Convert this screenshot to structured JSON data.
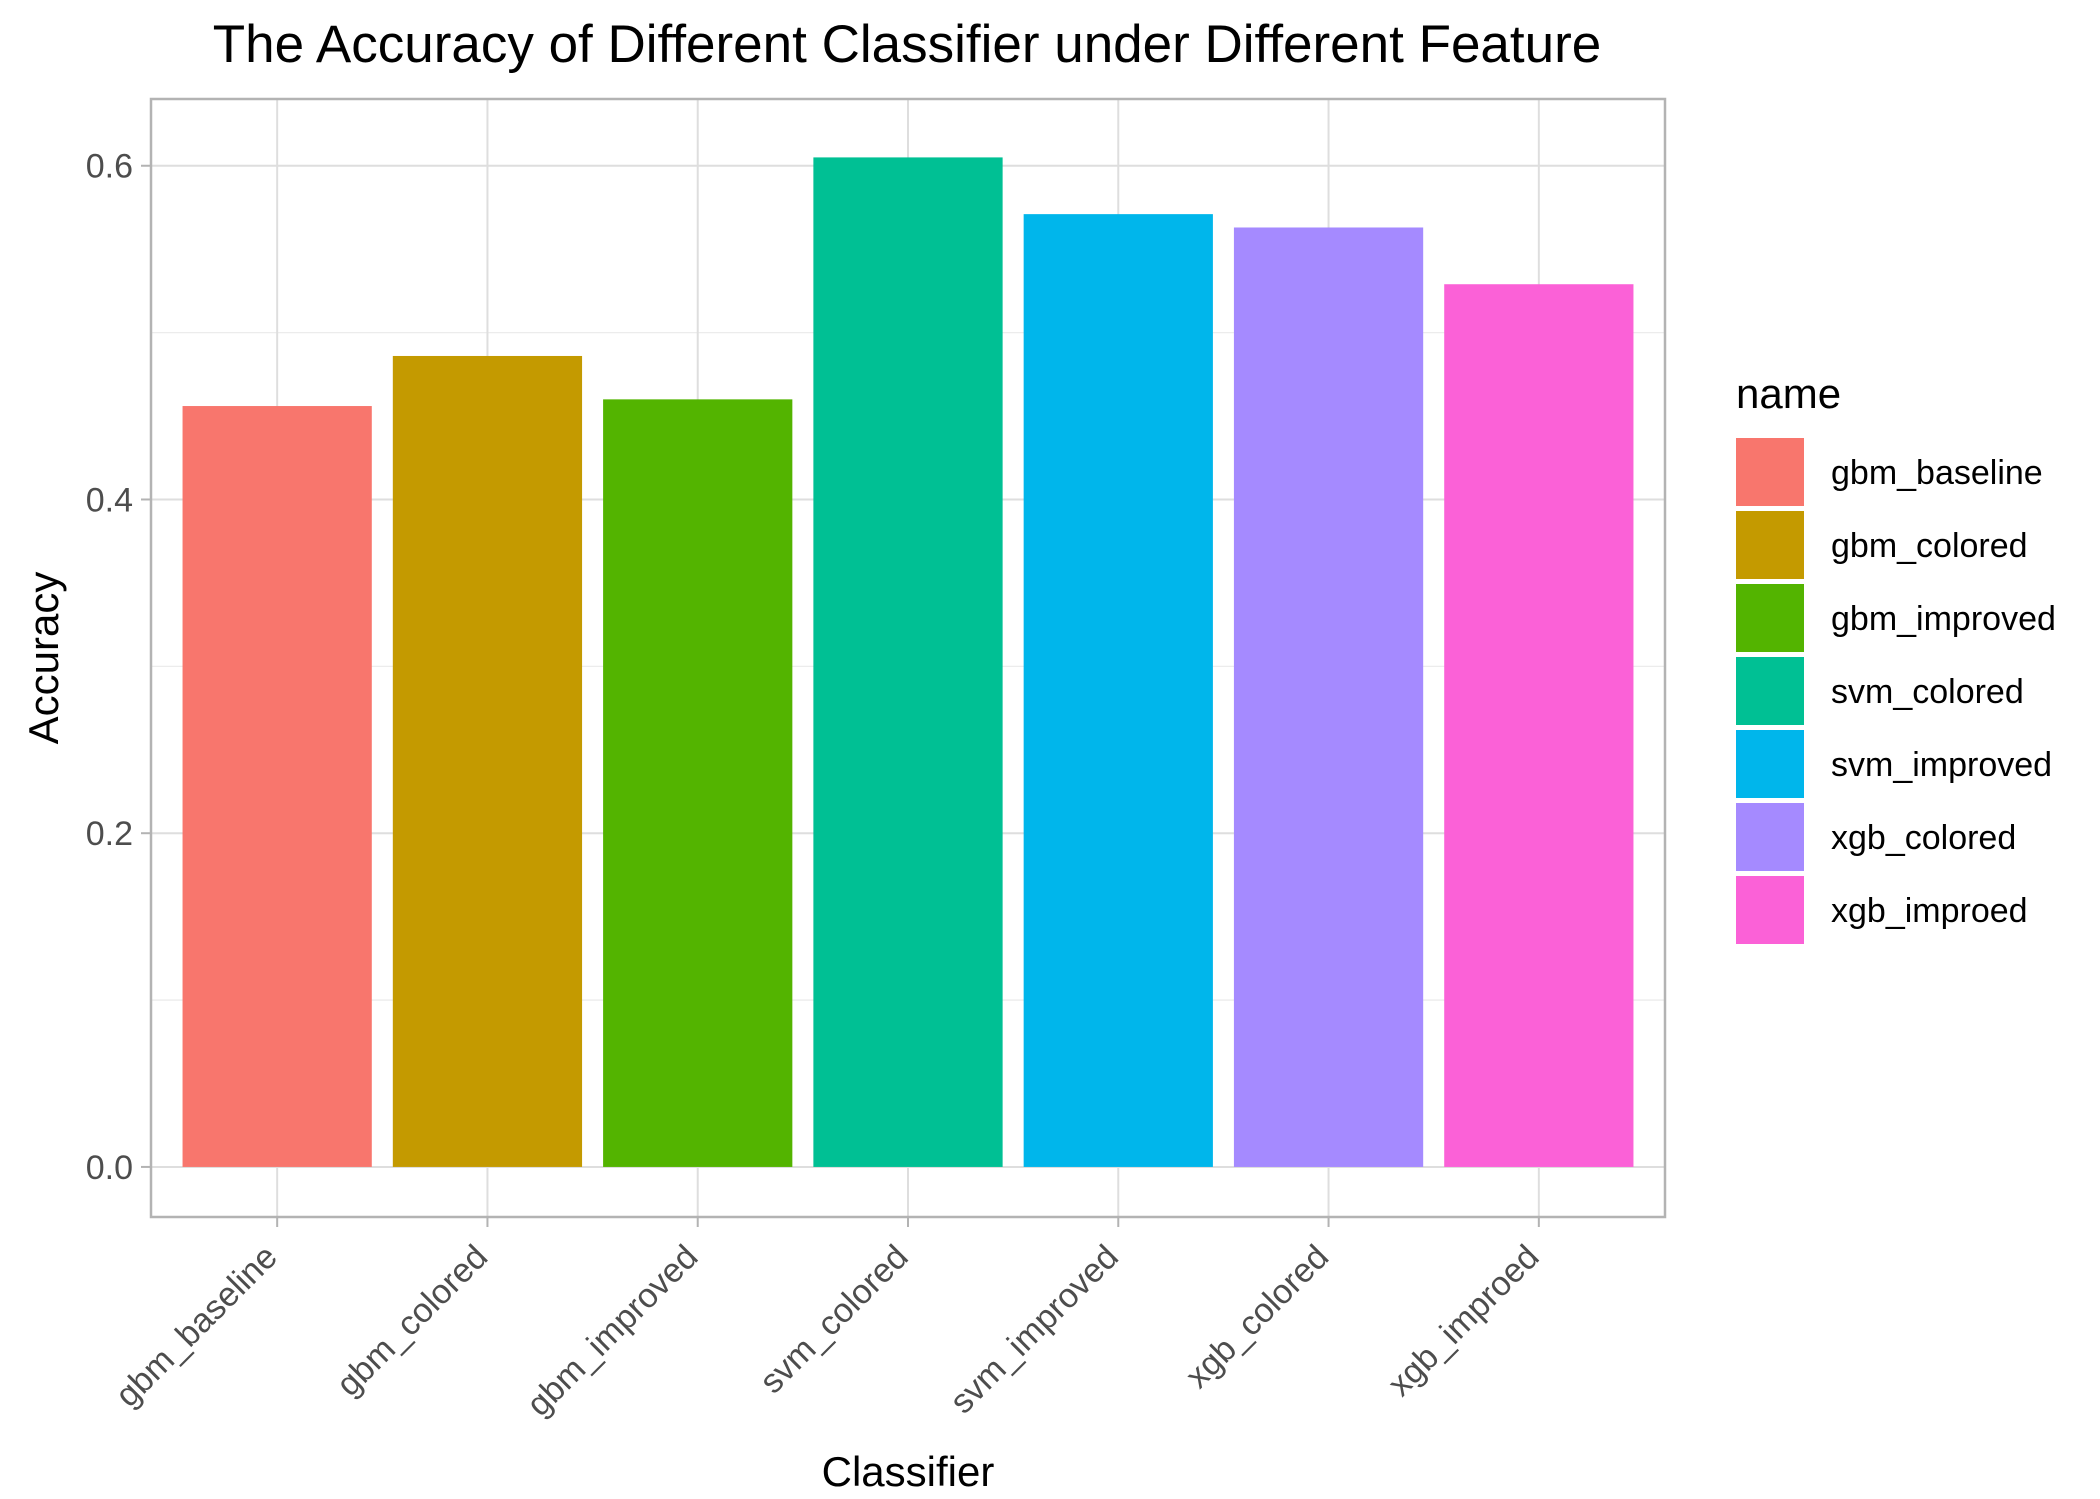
{
  "chart_data": {
    "type": "bar",
    "title": "The Accuracy of Different Classifier under Different Feature",
    "xlabel": "Classifier",
    "ylabel": "Accuracy",
    "categories": [
      "gbm_baseline",
      "gbm_colored",
      "gbm_improved",
      "svm_colored",
      "svm_improved",
      "xgb_colored",
      "xgb_improed"
    ],
    "values": [
      0.456,
      0.486,
      0.46,
      0.605,
      0.571,
      0.563,
      0.529
    ],
    "colors": [
      "#F8766D",
      "#C49A00",
      "#53B400",
      "#00C094",
      "#00B6EB",
      "#A58AFF",
      "#FB61D7"
    ],
    "ylim": [
      -0.03,
      0.64
    ],
    "yticks": [
      0.0,
      0.2,
      0.4,
      0.6
    ],
    "ytick_labels": [
      "0.0",
      "0.2",
      "0.4",
      "0.6"
    ],
    "grid": true,
    "legend": {
      "title": "name",
      "placement": "right",
      "entries": [
        "gbm_baseline",
        "gbm_colored",
        "gbm_improved",
        "svm_colored",
        "svm_improved",
        "xgb_colored",
        "xgb_improed"
      ]
    }
  }
}
